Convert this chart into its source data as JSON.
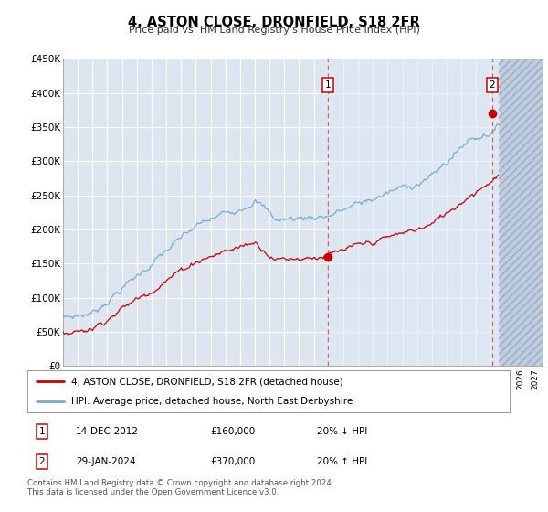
{
  "title": "4, ASTON CLOSE, DRONFIELD, S18 2FR",
  "subtitle": "Price paid vs. HM Land Registry's House Price Index (HPI)",
  "ylim": [
    0,
    450000
  ],
  "xlim_start": 1995.0,
  "xlim_end": 2027.5,
  "background_color": "#ffffff",
  "plot_bg_color": "#dde6f0",
  "grid_color": "#ffffff",
  "marker1_x": 2012.96,
  "marker2_x": 2024.08,
  "marker1_y": 160000,
  "marker2_y": 370000,
  "marker1_label": "14-DEC-2012",
  "marker2_label": "29-JAN-2024",
  "marker1_price": "£160,000",
  "marker2_price": "£370,000",
  "marker1_hpi": "20% ↓ HPI",
  "marker2_hpi": "20% ↑ HPI",
  "legend_line1": "4, ASTON CLOSE, DRONFIELD, S18 2FR (detached house)",
  "legend_line2": "HPI: Average price, detached house, North East Derbyshire",
  "footer": "Contains HM Land Registry data © Crown copyright and database right 2024.\nThis data is licensed under the Open Government Licence v3.0.",
  "red_line_color": "#cc0000",
  "blue_line_color": "#7aabcf",
  "future_cutoff": 2024.5,
  "future_hatch_color": "#c0cde0"
}
